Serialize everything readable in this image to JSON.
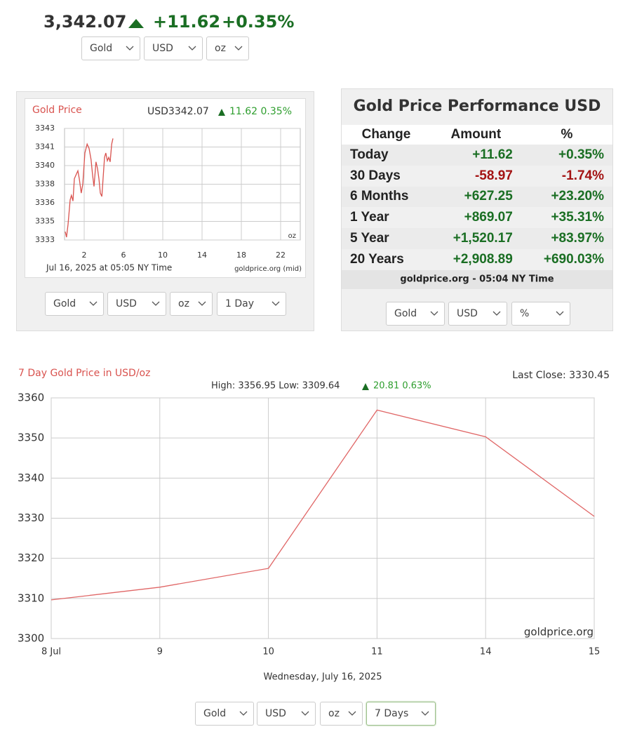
{
  "header": {
    "price": "3,342.07",
    "change": "+11.62",
    "percent": "+0.35%",
    "selects": [
      "Gold",
      "USD",
      "oz"
    ]
  },
  "chart_data": [
    {
      "type": "line",
      "title": "Gold Price",
      "price_label": "USD3342.07",
      "change_label": "11.62 0.35%",
      "x": [
        0.07,
        0.2,
        0.36,
        0.57,
        0.7,
        0.86,
        1.0,
        1.2,
        1.36,
        1.5,
        1.7,
        1.86,
        2.07,
        2.3,
        2.5,
        2.7,
        2.86,
        3.0,
        3.2,
        3.36,
        3.5,
        3.64,
        3.8,
        3.9,
        4.07,
        4.2,
        4.36,
        4.5,
        4.64,
        4.8,
        4.93
      ],
      "series": [
        {
          "color": "#d9534f",
          "values": [
            3333.75,
            3333.25,
            3334.4,
            3336.6,
            3337,
            3336.5,
            3338.5,
            3338.9,
            3339.2,
            3338.5,
            3337.2,
            3338,
            3340.8,
            3341.6,
            3341.2,
            3340.2,
            3338.8,
            3337.8,
            3340,
            3339.4,
            3338.5,
            3337.2,
            3336.9,
            3338.2,
            3340.4,
            3340.8,
            3340.1,
            3340.4,
            3340,
            3341.6,
            3342.1
          ]
        }
      ],
      "xlim": [
        0,
        24
      ],
      "xticks": [
        2,
        6,
        10,
        14,
        18,
        22
      ],
      "ylim": [
        3333,
        3343
      ],
      "yticks": [
        3333,
        {
          "value": 3334.67,
          "label": "3335"
        },
        {
          "value": 3336.33,
          "label": "3336"
        },
        3338,
        {
          "value": 3339.67,
          "label": "3340"
        },
        {
          "value": 3341.33,
          "label": "3341"
        },
        3343
      ],
      "unit_label": "oz",
      "date_label": "Jul 16, 2025 at 05:05 NY Time",
      "source": "goldprice.org (mid)",
      "grid": true
    },
    {
      "type": "line",
      "title": "7 Day Gold Price in USD/oz",
      "last_close": "Last Close: 3330.45",
      "high_low": "High: 3356.95 Low: 3309.64",
      "change_label": "20.81 0.63%",
      "categories": [
        "8 Jul",
        "9",
        "10",
        "11",
        "14",
        "15"
      ],
      "values": [
        3309.64,
        3312.8,
        3317.5,
        3356.95,
        3350.3,
        3330.45
      ],
      "color": "#e06666",
      "ylim": [
        3300,
        3360
      ],
      "yticks": [
        3300,
        3310,
        3320,
        3330,
        3340,
        3350,
        3360
      ],
      "xlabel": "Wednesday, July 16, 2025",
      "watermark": "goldprice.org",
      "grid": true
    }
  ],
  "small_chart_selects": [
    "Gold",
    "USD",
    "oz",
    "1 Day"
  ],
  "performance": {
    "title": "Gold Price Performance USD",
    "columns": [
      "Change",
      "Amount",
      "%"
    ],
    "rows": [
      [
        "Today",
        "+11.62",
        "+0.35%"
      ],
      [
        "30 Days",
        "-58.97",
        "-1.74%"
      ],
      [
        "6 Months",
        "+627.25",
        "+23.20%"
      ],
      [
        "1 Year",
        "+869.07",
        "+35.31%"
      ],
      [
        "5 Year",
        "+1,520.17",
        "+83.97%"
      ],
      [
        "20 Years",
        "+2,908.89",
        "+690.03%"
      ]
    ],
    "footer": "goldprice.org - 05:04 NY Time",
    "selects": [
      "Gold",
      "USD",
      "%"
    ]
  },
  "big_chart_selects": [
    "Gold",
    "USD",
    "oz",
    "7 Days"
  ]
}
